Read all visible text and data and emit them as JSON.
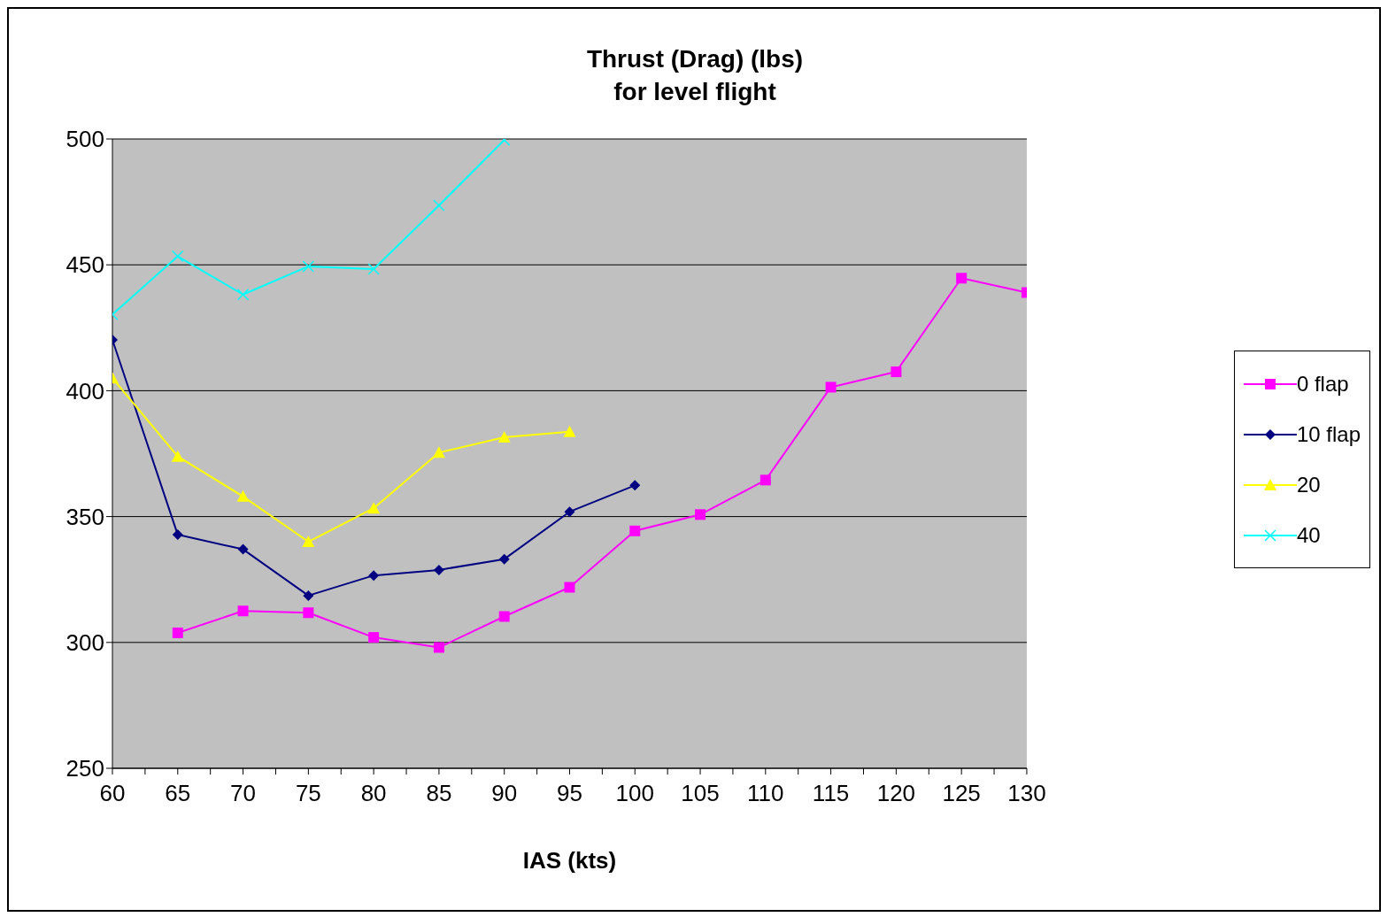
{
  "chart_data": {
    "type": "line",
    "title": "Thrust (Drag) (lbs)\nfor level flight",
    "xlabel": "IAS (kts)",
    "xlim": [
      60,
      130
    ],
    "xticks": [
      60,
      {
        "value": 62.5,
        "label": null
      },
      65,
      {
        "value": 67.5,
        "label": null
      },
      70,
      {
        "value": 72.5,
        "label": null
      },
      75,
      {
        "value": 77.5,
        "label": null
      },
      80,
      {
        "value": 82.5,
        "label": null
      },
      85,
      {
        "value": 87.5,
        "label": null
      },
      90,
      {
        "value": 92.5,
        "label": null
      },
      95,
      {
        "value": 97.5,
        "label": null
      },
      100,
      {
        "value": 102.5,
        "label": null
      },
      105,
      {
        "value": 107.5,
        "label": null
      },
      110,
      {
        "value": 112.5,
        "label": null
      },
      115,
      {
        "value": 117.5,
        "label": null
      },
      120,
      {
        "value": 122.5,
        "label": null
      },
      125,
      {
        "value": 127.5,
        "label": null
      },
      130
    ],
    "ylim": [
      250,
      500
    ],
    "yticks": [
      250,
      300,
      350,
      400,
      450,
      500
    ],
    "grid": "y",
    "legend": "right",
    "series": [
      {
        "name": "0 flap",
        "color": "#ff00ff",
        "marker": "square",
        "x": [
          65,
          70,
          75,
          80,
          85,
          90,
          95,
          100,
          105,
          110,
          115,
          120,
          125,
          130
        ],
        "values": [
          303.8,
          312.5,
          311.8,
          302,
          298,
          310.3,
          321.9,
          344.3,
          350.8,
          364.5,
          401.4,
          407.5,
          444.7,
          439
        ]
      },
      {
        "name": "10 flap",
        "color": "#000080",
        "marker": "diamond",
        "x": [
          60,
          65,
          70,
          75,
          80,
          85,
          90,
          95,
          100
        ],
        "values": [
          420.2,
          342.8,
          337,
          318.6,
          326.6,
          328.8,
          333.1,
          351.9,
          362.4
        ]
      },
      {
        "name": "20",
        "color": "#ffff00",
        "marker": "triangle",
        "x": [
          60,
          65,
          70,
          75,
          80,
          85,
          90,
          95
        ],
        "values": [
          405,
          373.9,
          358,
          340,
          353.3,
          375.4,
          381.5,
          383.7
        ]
      },
      {
        "name": "40",
        "color": "#00ffff",
        "marker": "cross",
        "x": [
          60,
          65,
          70,
          75,
          80,
          85,
          90
        ],
        "values": [
          430.3,
          453.4,
          438.2,
          449.4,
          448.3,
          473.6,
          499.6
        ]
      }
    ]
  }
}
